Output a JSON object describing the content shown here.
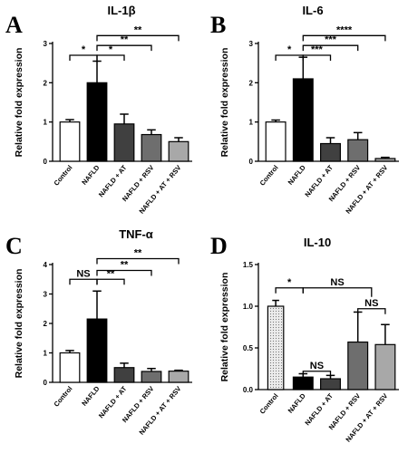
{
  "chart_data": [
    {
      "type": "bar",
      "panel": "A",
      "title": "IL-1β",
      "ylabel": "Relative fold expression",
      "ylim": [
        0,
        3
      ],
      "yticks": [
        "0",
        "1",
        "2",
        "3"
      ],
      "categories": [
        "Control",
        "NAFLD",
        "NAFLD + AT",
        "NAFLD + RSV",
        "NAFLD + AT + RSV"
      ],
      "values": [
        1.0,
        2.0,
        0.95,
        0.68,
        0.5
      ],
      "errors": [
        0.06,
        0.55,
        0.25,
        0.12,
        0.1
      ],
      "colors": [
        "#ffffff",
        "#000000",
        "#404040",
        "#6e6e6e",
        "#a8a8a8"
      ],
      "significance": [
        {
          "from": 0,
          "to": 1,
          "label": "*",
          "y": 2.7
        },
        {
          "from": 1,
          "to": 2,
          "label": "*",
          "y": 2.7
        },
        {
          "from": 1,
          "to": 3,
          "label": "**",
          "y": 2.95
        },
        {
          "from": 1,
          "to": 4,
          "label": "**",
          "y": 3.2
        }
      ]
    },
    {
      "type": "bar",
      "panel": "B",
      "title": "IL-6",
      "ylabel": "Relative fold expression",
      "ylim": [
        0,
        3
      ],
      "yticks": [
        "0",
        "1",
        "2",
        "3"
      ],
      "categories": [
        "Control",
        "NAFLD",
        "NAFLD + AT",
        "NAFLD + RSV",
        "NAFLD + AT + RSV"
      ],
      "values": [
        1.0,
        2.1,
        0.45,
        0.55,
        0.07
      ],
      "errors": [
        0.05,
        0.55,
        0.15,
        0.18,
        0.03
      ],
      "colors": [
        "#ffffff",
        "#000000",
        "#404040",
        "#6e6e6e",
        "#a8a8a8"
      ],
      "significance": [
        {
          "from": 0,
          "to": 1,
          "label": "*",
          "y": 2.7
        },
        {
          "from": 1,
          "to": 2,
          "label": "***",
          "y": 2.7
        },
        {
          "from": 1,
          "to": 3,
          "label": "***",
          "y": 2.95
        },
        {
          "from": 1,
          "to": 4,
          "label": "****",
          "y": 3.2
        }
      ]
    },
    {
      "type": "bar",
      "panel": "C",
      "title": "TNF-α",
      "ylabel": "Relative fold expression",
      "ylim": [
        0,
        4
      ],
      "yticks": [
        "0",
        "1",
        "2",
        "3",
        "4"
      ],
      "categories": [
        "Control",
        "NAFLD",
        "NAFLD + AT",
        "NAFLD + RSV",
        "NAFLD + AT + RSV"
      ],
      "values": [
        1.0,
        2.15,
        0.5,
        0.37,
        0.38
      ],
      "errors": [
        0.08,
        0.95,
        0.15,
        0.1,
        0.03
      ],
      "colors": [
        "#ffffff",
        "#000000",
        "#404040",
        "#6e6e6e",
        "#a8a8a8"
      ],
      "significance": [
        {
          "from": 0,
          "to": 1,
          "label": "NS",
          "y": 3.5
        },
        {
          "from": 1,
          "to": 2,
          "label": "**",
          "y": 3.5
        },
        {
          "from": 1,
          "to": 3,
          "label": "**",
          "y": 3.8
        },
        {
          "from": 1,
          "to": 4,
          "label": "**",
          "y": 4.2
        }
      ]
    },
    {
      "type": "bar",
      "panel": "D",
      "title": "IL-10",
      "ylabel": "Relative fold expression",
      "ylim": [
        0,
        1.5
      ],
      "yticks": [
        "0.0",
        "0.5",
        "1.0",
        "1.5"
      ],
      "categories": [
        "Control",
        "NAFLD",
        "NAFLD + AT",
        "NAFLD + RSV",
        "NAFLD + AT + RSV"
      ],
      "values": [
        1.0,
        0.15,
        0.13,
        0.57,
        0.54
      ],
      "errors": [
        0.07,
        0.04,
        0.04,
        0.36,
        0.24
      ],
      "colors": [
        "#dcdcdc",
        "#000000",
        "#404040",
        "#6e6e6e",
        "#a8a8a8"
      ],
      "patterns": [
        "dots",
        "",
        "",
        "",
        ""
      ],
      "significance": [
        {
          "from": 0,
          "to": 1,
          "label": "*",
          "y": 1.22
        },
        {
          "from": 1,
          "to": 2,
          "label": "NS",
          "y": 0.22
        },
        {
          "from": 1,
          "to": 3.5,
          "label": "NS",
          "y": 1.22
        },
        {
          "from": 3,
          "to": 4,
          "label": "NS",
          "y": 0.97
        }
      ]
    }
  ]
}
